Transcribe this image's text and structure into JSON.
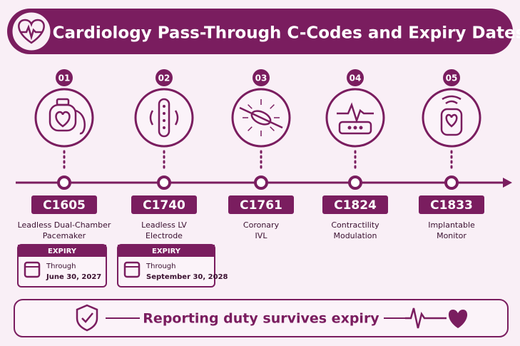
{
  "header": {
    "title": "Cardiology Pass-Through C-Codes and Expiry Dates"
  },
  "items": [
    {
      "number": "01",
      "code": "C1605",
      "name_lines": [
        "Leadless Dual-Chamber",
        "Pacemaker"
      ],
      "expiry": {
        "label": "EXPIRY",
        "through": "Through",
        "date": "June 30, 2027"
      }
    },
    {
      "number": "02",
      "code": "C1740",
      "name_lines": [
        "Leadless LV",
        "Electrode"
      ],
      "expiry": {
        "label": "EXPIRY",
        "through": "Through",
        "date": "September 30, 2028"
      }
    },
    {
      "number": "03",
      "code": "C1761",
      "name_lines": [
        "Coronary",
        "IVL"
      ]
    },
    {
      "number": "04",
      "code": "C1824",
      "name_lines": [
        "Contractility",
        "Modulation"
      ]
    },
    {
      "number": "05",
      "code": "C1833",
      "name_lines": [
        "Implantable",
        "Monitor"
      ]
    }
  ],
  "footer": {
    "text": "Reporting duty survives expiry"
  }
}
